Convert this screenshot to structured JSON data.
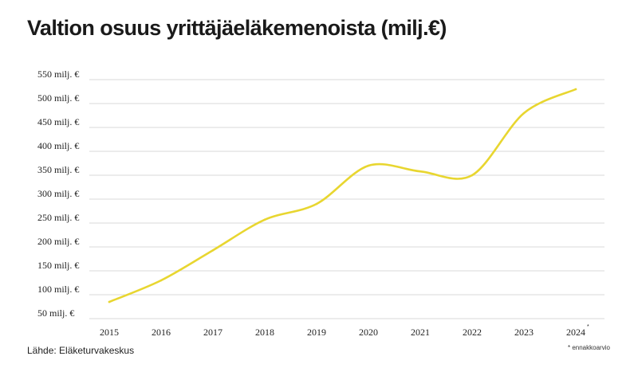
{
  "chart_data": {
    "type": "line",
    "title": "Valtion osuus yrittäjäeläkemenoista (milj.€)",
    "x": [
      "2015",
      "2016",
      "2017",
      "2018",
      "2019",
      "2020",
      "2021",
      "2022",
      "2023",
      "2024"
    ],
    "x_marker": "*",
    "series": [
      {
        "values": [
          85,
          130,
          193,
          257,
          290,
          370,
          358,
          350,
          480,
          530
        ],
        "color": "#e8d630"
      }
    ],
    "y_ticks": [
      {
        "value": 50,
        "label": "50 milj. €"
      },
      {
        "value": 100,
        "label": "100 milj. €"
      },
      {
        "value": 150,
        "label": "150 milj. €"
      },
      {
        "value": 200,
        "label": "200 milj. €"
      },
      {
        "value": 250,
        "label": "250 milj. €"
      },
      {
        "value": 300,
        "label": "300 milj. €"
      },
      {
        "value": 350,
        "label": "350 milj. €"
      },
      {
        "value": 400,
        "label": "400 milj. €"
      },
      {
        "value": 450,
        "label": "450 milj. €"
      },
      {
        "value": 500,
        "label": "500 milj. €"
      },
      {
        "value": 550,
        "label": "550 milj. €"
      }
    ],
    "ylim": [
      50,
      550
    ],
    "grid": true,
    "footnote": "* ennakkoarvio",
    "source": "Lähde: Eläketurvakeskus"
  }
}
